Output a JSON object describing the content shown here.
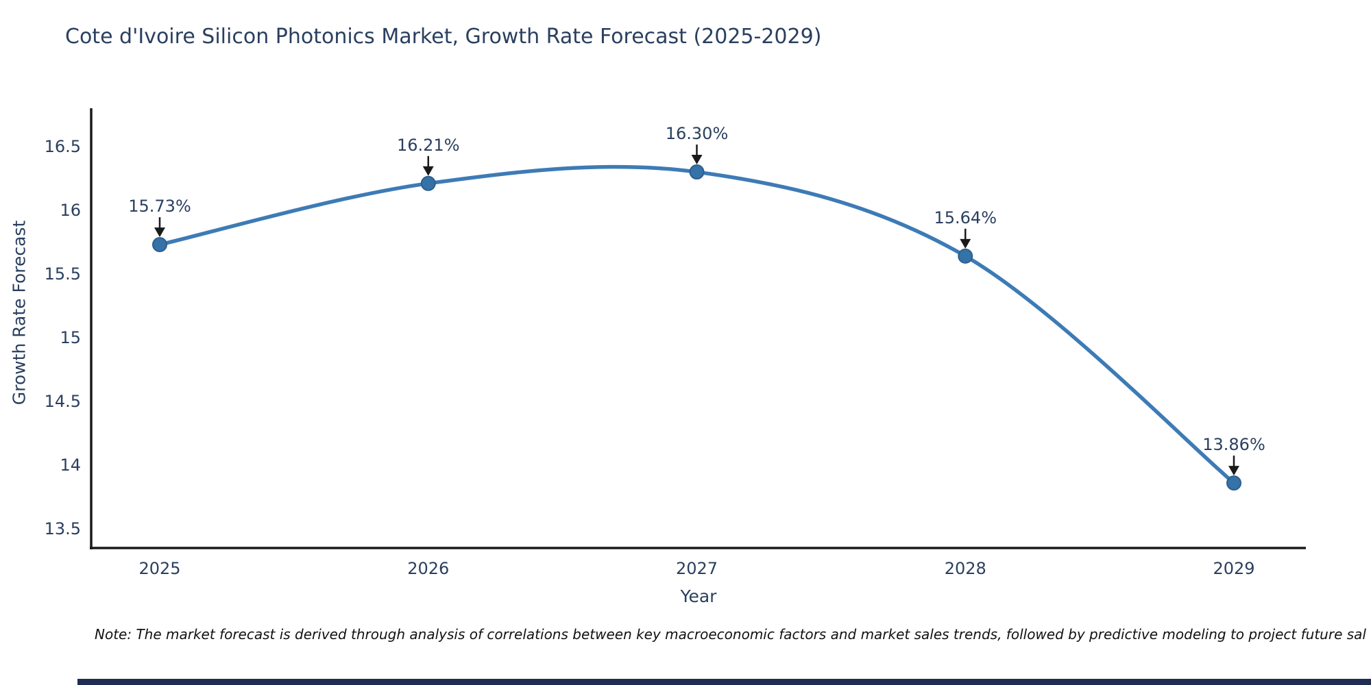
{
  "title": "Cote d'Ivoire Silicon Photonics Market, Growth Rate Forecast (2025-2029)",
  "note": "Note: The market forecast is derived through analysis of correlations between key macroeconomic factors and market sales trends, followed by predictive modeling to project future sal",
  "footer_bar_color": "#1f2c56",
  "chart_data": {
    "type": "line",
    "title": "Cote d'Ivoire Silicon Photonics Market, Growth Rate Forecast (2025-2029)",
    "xlabel": "Year",
    "ylabel": "Growth Rate Forecast",
    "x": [
      2025,
      2026,
      2027,
      2028,
      2029
    ],
    "values": [
      15.73,
      16.21,
      16.3,
      15.64,
      13.86
    ],
    "point_labels": [
      "15.73%",
      "16.21%",
      "16.30%",
      "15.64%",
      "13.86%"
    ],
    "xtick_labels": [
      "2025",
      "2026",
      "2027",
      "2028",
      "2029"
    ],
    "yticks": [
      13.5,
      14,
      14.5,
      15,
      15.5,
      16,
      16.5
    ],
    "ylim": [
      13.35,
      16.8
    ],
    "grid": false,
    "legend": "none",
    "line_shape": "spline",
    "colors": {
      "line": "#3d7bb5",
      "marker_fill": "#3572a8",
      "marker_edge": "#2c5f8d",
      "axis_line": "#1a1a1a",
      "tick_text": "#2a3f5f",
      "annotation_text": "#2a3f5f",
      "arrow": "#1a1a1a"
    }
  }
}
